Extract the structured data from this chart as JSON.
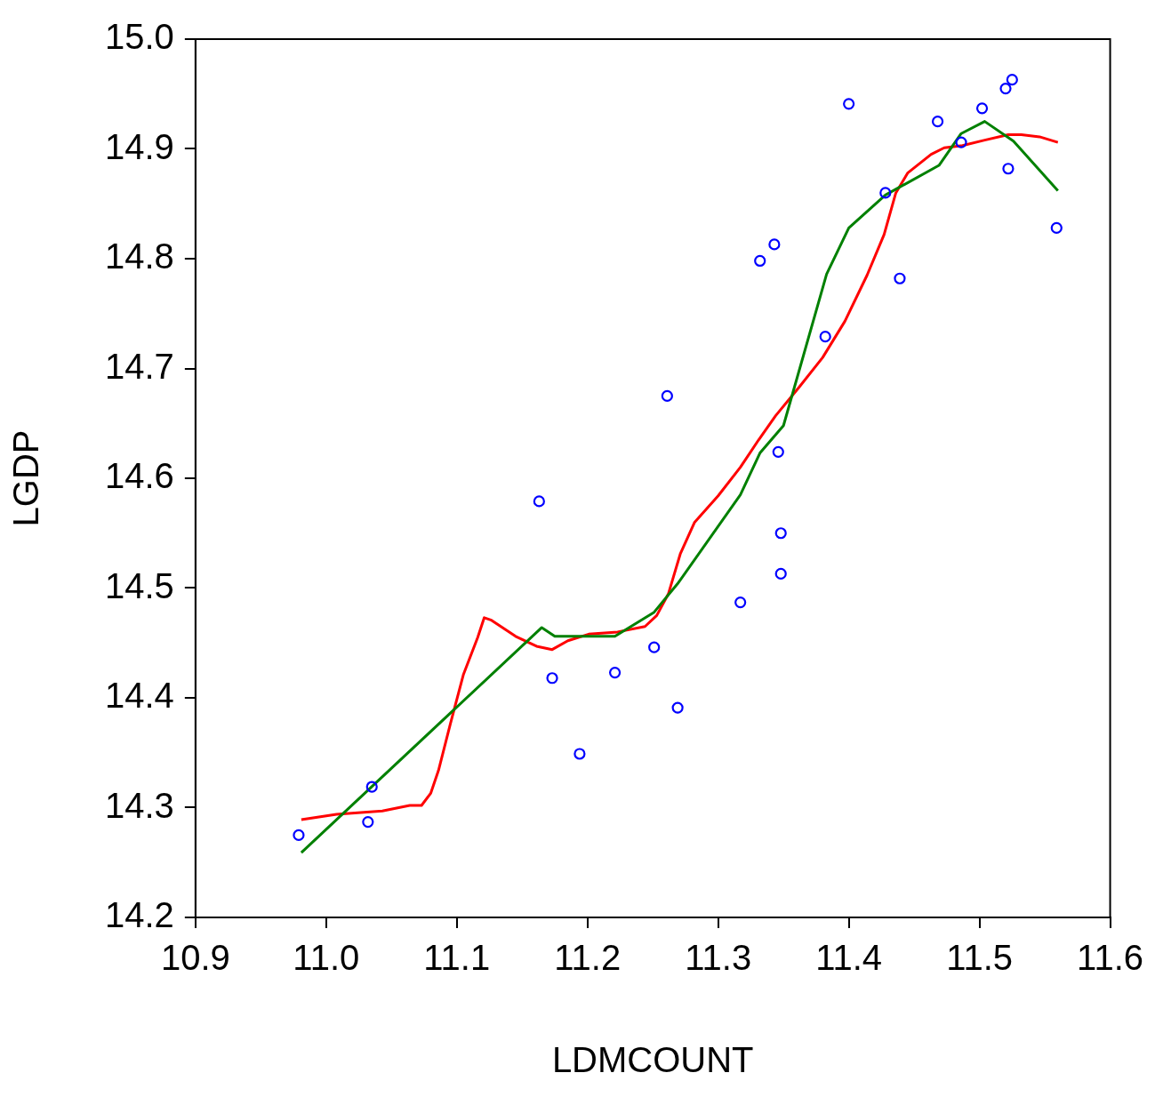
{
  "chart_data": {
    "type": "scatter",
    "xlabel": "LDMCOUNT",
    "ylabel": "LGDP",
    "xlim": [
      10.9,
      11.6
    ],
    "ylim": [
      14.2,
      15.0
    ],
    "xticks": [
      {
        "value": 10.9,
        "label": "10.9"
      },
      {
        "value": 11.0,
        "label": "11.0"
      },
      {
        "value": 11.1,
        "label": "11.1"
      },
      {
        "value": 11.2,
        "label": "11.2"
      },
      {
        "value": 11.3,
        "label": "11.3"
      },
      {
        "value": 11.4,
        "label": "11.4"
      },
      {
        "value": 11.5,
        "label": "11.5"
      },
      {
        "value": 11.6,
        "label": "11.6"
      }
    ],
    "yticks": [
      {
        "value": 14.2,
        "label": "14.2"
      },
      {
        "value": 14.3,
        "label": "14.3"
      },
      {
        "value": 14.4,
        "label": "14.4"
      },
      {
        "value": 14.5,
        "label": "14.5"
      },
      {
        "value": 14.6,
        "label": "14.6"
      },
      {
        "value": 14.7,
        "label": "14.7"
      },
      {
        "value": 14.8,
        "label": "14.8"
      },
      {
        "value": 14.9,
        "label": "14.9"
      },
      {
        "value": 15.0,
        "label": "15.0"
      }
    ],
    "series": [
      {
        "type": "scatter",
        "color": "#0000ff",
        "marker": "circle",
        "x": [
          10.979,
          11.032,
          11.035,
          11.163,
          11.173,
          11.194,
          11.221,
          11.251,
          11.261,
          11.269,
          11.317,
          11.332,
          11.343,
          11.346,
          11.348,
          11.348,
          11.382,
          11.4,
          11.428,
          11.439,
          11.468,
          11.486,
          11.502,
          11.52,
          11.522,
          11.525,
          11.559
        ],
        "values": [
          14.275,
          14.287,
          14.319,
          14.579,
          14.418,
          14.349,
          14.423,
          14.446,
          14.675,
          14.391,
          14.487,
          14.798,
          14.813,
          14.624,
          14.55,
          14.513,
          14.729,
          14.941,
          14.86,
          14.782,
          14.925,
          14.906,
          14.937,
          14.955,
          14.882,
          14.963,
          14.828
        ]
      },
      {
        "type": "line",
        "color": "#008000",
        "marker": "none",
        "line_style": "solid",
        "x": [
          10.981,
          11.165,
          11.175,
          11.221,
          11.251,
          11.269,
          11.317,
          11.332,
          11.35,
          11.383,
          11.4,
          11.428,
          11.469,
          11.486,
          11.504,
          11.526,
          11.56
        ],
        "values": [
          14.259,
          14.464,
          14.456,
          14.456,
          14.478,
          14.504,
          14.585,
          14.623,
          14.648,
          14.786,
          14.828,
          14.858,
          14.885,
          14.914,
          14.925,
          14.907,
          14.862
        ]
      },
      {
        "type": "line",
        "color": "#ff0000",
        "marker": "none",
        "line_style": "solid",
        "x": [
          10.981,
          11.008,
          11.043,
          11.064,
          11.073,
          11.08,
          11.086,
          11.095,
          11.105,
          11.116,
          11.121,
          11.126,
          11.145,
          11.161,
          11.173,
          11.185,
          11.201,
          11.223,
          11.244,
          11.253,
          11.262,
          11.271,
          11.282,
          11.3,
          11.317,
          11.331,
          11.344,
          11.362,
          11.38,
          11.397,
          11.414,
          11.427,
          11.436,
          11.445,
          11.463,
          11.473,
          11.487,
          11.504,
          11.522,
          11.532,
          11.546,
          11.56
        ],
        "values": [
          14.289,
          14.294,
          14.297,
          14.302,
          14.302,
          14.313,
          14.334,
          14.376,
          14.421,
          14.455,
          14.473,
          14.471,
          14.456,
          14.447,
          14.444,
          14.452,
          14.458,
          14.46,
          14.465,
          14.475,
          14.495,
          14.531,
          14.56,
          14.584,
          14.61,
          14.635,
          14.657,
          14.683,
          14.71,
          14.743,
          14.785,
          14.822,
          14.86,
          14.878,
          14.895,
          14.901,
          14.903,
          14.908,
          14.913,
          14.913,
          14.911,
          14.906
        ]
      }
    ]
  }
}
